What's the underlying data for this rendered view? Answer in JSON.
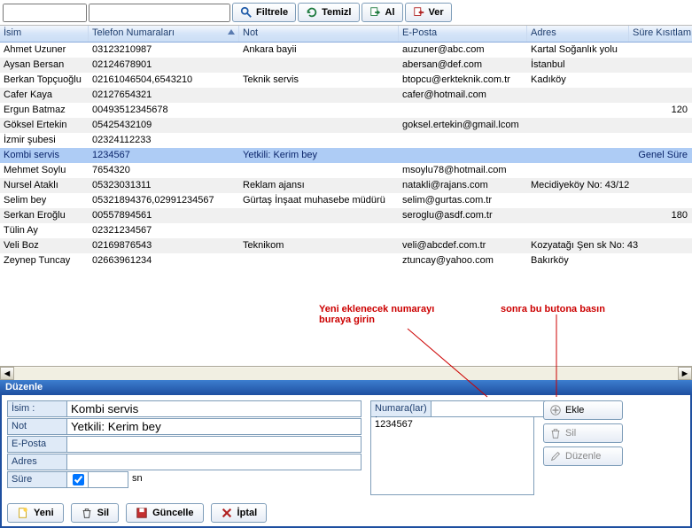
{
  "toolbar": {
    "search1": "",
    "search2": "",
    "filter": "Filtrele",
    "clear": "Temizl",
    "get": "Al",
    "send": "Ver"
  },
  "columns": [
    "İsim",
    "Telefon Numaraları",
    "Not",
    "E-Posta",
    "Adres",
    "Süre Kısıtlam"
  ],
  "rows": [
    {
      "name": "Ahmet Uzuner",
      "tel": "03123210987",
      "note": "Ankara bayii",
      "email": "auzuner@abc.com",
      "addr": "Kartal Soğanlık yolu",
      "sure": ""
    },
    {
      "name": "Aysan Bersan",
      "tel": "02124678901",
      "note": "",
      "email": "abersan@def.com",
      "addr": "İstanbul",
      "sure": ""
    },
    {
      "name": "Berkan Topçuoğlu",
      "tel": "02161046504,6543210",
      "note": "Teknik servis",
      "email": "btopcu@erkteknik.com.tr",
      "addr": "Kadıköy",
      "sure": ""
    },
    {
      "name": "Cafer Kaya",
      "tel": "02127654321",
      "note": "",
      "email": "cafer@hotmail.com",
      "addr": "",
      "sure": ""
    },
    {
      "name": "Ergun Batmaz",
      "tel": "00493512345678",
      "note": "",
      "email": "",
      "addr": "",
      "sure": "120"
    },
    {
      "name": "Göksel Ertekin",
      "tel": "05425432109",
      "note": "",
      "email": "goksel.ertekin@gmail.lcom",
      "addr": "",
      "sure": ""
    },
    {
      "name": "İzmir şubesi",
      "tel": "02324112233",
      "note": "",
      "email": "",
      "addr": "",
      "sure": ""
    },
    {
      "name": "Kombi servis",
      "tel": "1234567",
      "note": "Yetkili: Kerim bey",
      "email": "",
      "addr": "",
      "sure": "Genel Süre",
      "selected": true
    },
    {
      "name": "Mehmet Soylu",
      "tel": "7654320",
      "note": "",
      "email": "msoylu78@hotmail.com",
      "addr": "",
      "sure": ""
    },
    {
      "name": "Nursel Ataklı",
      "tel": "05323031311",
      "note": "Reklam ajansı",
      "email": "natakli@rajans.com",
      "addr": "Mecidiyeköy No: 43/12",
      "sure": ""
    },
    {
      "name": "Selim bey",
      "tel": "05321894376,02991234567",
      "note": "Gürtaş İnşaat muhasebe müdürü",
      "email": "selim@gurtas.com.tr",
      "addr": "",
      "sure": ""
    },
    {
      "name": "Serkan Eroğlu",
      "tel": "00557894561",
      "note": "",
      "email": "seroglu@asdf.com.tr",
      "addr": "",
      "sure": "180"
    },
    {
      "name": "Tülin Ay",
      "tel": "02321234567",
      "note": "",
      "email": "",
      "addr": "",
      "sure": ""
    },
    {
      "name": "Veli Boz",
      "tel": "02169876543",
      "note": "Teknikom",
      "email": "veli@abcdef.com.tr",
      "addr": "Kozyatağı Şen sk No: 43",
      "sure": ""
    },
    {
      "name": "Zeynep Tuncay",
      "tel": "02663961234",
      "note": "",
      "email": "ztuncay@yahoo.com",
      "addr": "Bakırköy",
      "sure": ""
    }
  ],
  "annotations": {
    "a1": "Yeni eklenecek numarayı buraya girin",
    "a2": "sonra bu butona basın"
  },
  "edit": {
    "title": "Düzenle",
    "labels": {
      "isim": "İsim :",
      "not": "Not",
      "eposta": "E-Posta",
      "adres": "Adres",
      "sure": "Süre",
      "sn": "sn",
      "numara": "Numara(lar) :"
    },
    "values": {
      "isim": "Kombi servis",
      "not": "Yetkili: Kerim bey",
      "eposta": "",
      "adres": "",
      "numara_input": "",
      "numlist": "1234567"
    },
    "side": {
      "ekle": "Ekle",
      "sil": "Sil",
      "duzenle": "Düzenle"
    },
    "bottom": {
      "yeni": "Yeni",
      "sil": "Sil",
      "guncelle": "Güncelle",
      "iptal": "İptal"
    }
  }
}
